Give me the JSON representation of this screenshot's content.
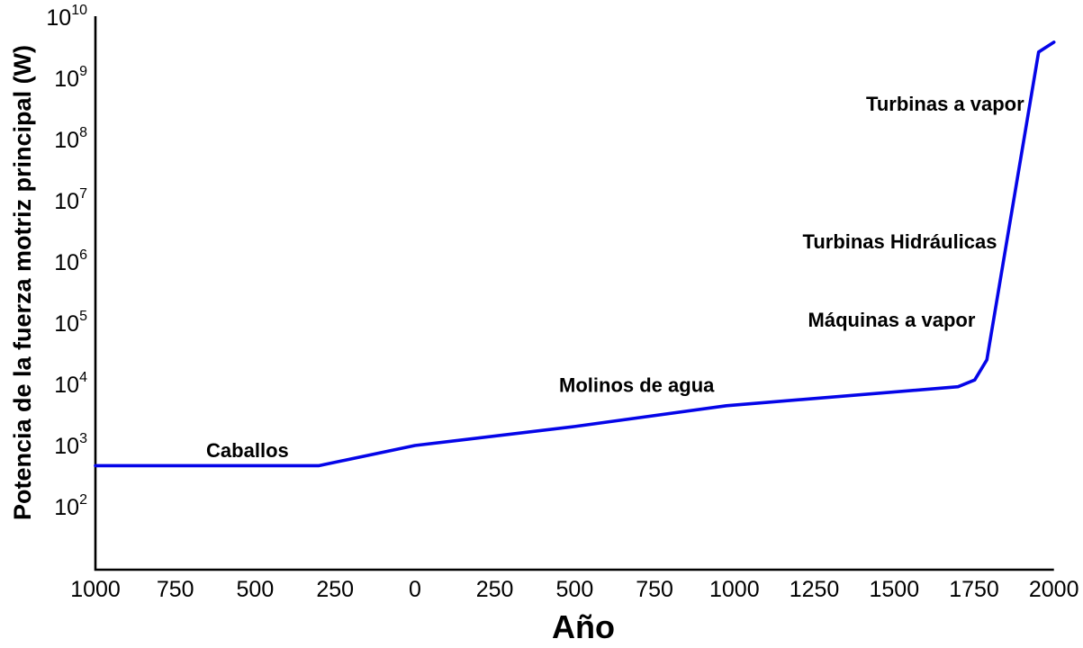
{
  "chart_data": {
    "type": "line",
    "title": "",
    "xlabel": "Año",
    "ylabel": "Potencia de la fuerza motriz principal (W)",
    "x_axis": {
      "scale": "linear",
      "xlim": [
        -1000,
        2000
      ],
      "tick_step": 250,
      "note": "tick labels shown as absolute values (years BC without sign)"
    },
    "x_ticks": [
      {
        "year": -1000,
        "label": "1000"
      },
      {
        "year": -750,
        "label": "750"
      },
      {
        "year": -500,
        "label": "500"
      },
      {
        "year": -250,
        "label": "250"
      },
      {
        "year": 0,
        "label": "0"
      },
      {
        "year": 250,
        "label": "250"
      },
      {
        "year": 500,
        "label": "500"
      },
      {
        "year": 750,
        "label": "750"
      },
      {
        "year": 1000,
        "label": "1000"
      },
      {
        "year": 1250,
        "label": "1250"
      },
      {
        "year": 1500,
        "label": "1500"
      },
      {
        "year": 1750,
        "label": "1750"
      },
      {
        "year": 2000,
        "label": "2000"
      }
    ],
    "y_axis": {
      "scale": "log10",
      "ylim_exponents": [
        1,
        10
      ],
      "tick_base": "10"
    },
    "y_tick_exponents": [
      10,
      9,
      8,
      7,
      6,
      5,
      4,
      3,
      2
    ],
    "grid": false,
    "legend": "none",
    "line_color": "#0505e8",
    "axis_color": "#000000",
    "series": [
      {
        "name": "Potencia de la fuerza motriz principal",
        "points": [
          {
            "year": -1000,
            "log10_watts": 2.67,
            "watts": 470
          },
          {
            "year": -300,
            "log10_watts": 2.67,
            "watts": 470
          },
          {
            "year": 0,
            "log10_watts": 3.0,
            "watts": 1000
          },
          {
            "year": 500,
            "log10_watts": 3.31,
            "watts": 2000
          },
          {
            "year": 975,
            "log10_watts": 3.65,
            "watts": 4500
          },
          {
            "year": 1700,
            "log10_watts": 3.96,
            "watts": 9100
          },
          {
            "year": 1752,
            "log10_watts": 4.07,
            "watts": 11700
          },
          {
            "year": 1790,
            "log10_watts": 4.4,
            "watts": 25000
          },
          {
            "year": 1952,
            "log10_watts": 9.43,
            "watts": 2700000000
          },
          {
            "year": 2000,
            "log10_watts": 9.59,
            "watts": 3900000000
          }
        ]
      }
    ],
    "annotations": [
      {
        "text": "Caballos",
        "year": -524,
        "log10_watts": 2.93,
        "align": "center"
      },
      {
        "text": "Molinos de agua",
        "year": 694,
        "log10_watts": 3.99,
        "align": "center"
      },
      {
        "text": "Máquinas a vapor",
        "year": 1754,
        "log10_watts": 5.06,
        "align": "right"
      },
      {
        "text": "Turbinas Hidráulicas",
        "year": 1822,
        "log10_watts": 6.34,
        "align": "right"
      },
      {
        "text": "Turbinas a vapor",
        "year": 1907,
        "log10_watts": 8.59,
        "align": "right"
      }
    ]
  }
}
